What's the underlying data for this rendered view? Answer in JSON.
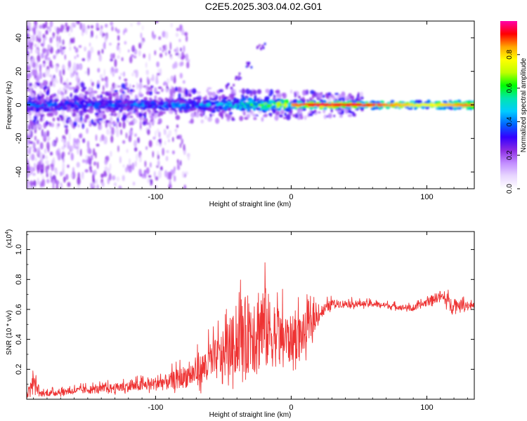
{
  "title": "C2E5.2025.303.04.02.G01",
  "chart_data": [
    {
      "type": "heatmap",
      "xlabel": "Height of straight line (km)",
      "ylabel": "Frequency (Hz)",
      "xlim": [
        -195,
        135
      ],
      "ylim": [
        -50,
        50
      ],
      "x_ticks": [
        -100,
        0,
        100
      ],
      "y_ticks": [
        -40,
        -20,
        0,
        20,
        40
      ],
      "colorbar": {
        "label": "Normalized spectral amplitude",
        "range": [
          0,
          1
        ],
        "ticks": [
          0.0,
          0.2,
          0.4,
          0.6,
          0.8
        ],
        "colormap": [
          "#ffffff",
          "#e8d6ff",
          "#c18cff",
          "#8a2be2",
          "#3300ff",
          "#0066ff",
          "#00ccff",
          "#00e5b0",
          "#00ff00",
          "#bfff00",
          "#ffff00",
          "#ffa500",
          "#ff0000",
          "#ff00aa"
        ]
      },
      "ridge": {
        "description_free": true,
        "x_start": -195,
        "x_end": 135,
        "center_frequency": 0,
        "amplitude_trend": [
          {
            "x": -195,
            "amp": 0.45
          },
          {
            "x": -100,
            "amp": 0.45
          },
          {
            "x": -40,
            "amp": 0.6
          },
          {
            "x": 0,
            "amp": 0.85
          },
          {
            "x": 20,
            "amp": 0.95
          },
          {
            "x": 60,
            "amp": 0.9
          },
          {
            "x": 100,
            "amp": 0.75
          },
          {
            "x": 135,
            "amp": 0.9
          }
        ]
      },
      "secondary_arc": [
        {
          "x": -45,
          "f": 12
        },
        {
          "x": -38,
          "f": 17
        },
        {
          "x": -30,
          "f": 24
        },
        {
          "x": -22,
          "f": 35
        }
      ]
    },
    {
      "type": "line",
      "xlabel": "Height of straight line (km)",
      "ylabel": "SNR (10 * v/v)",
      "multiplier": "(x10",
      "multiplier_exp": "4",
      "multiplier_close": ")",
      "xlim": [
        -195,
        135
      ],
      "ylim": [
        0,
        1.12
      ],
      "x_ticks": [
        -100,
        0,
        100
      ],
      "y_ticks": [
        0.2,
        0.4,
        0.6,
        0.8,
        1.0
      ],
      "color": "#ee3333",
      "envelope": [
        {
          "x": -195,
          "base": 0.02,
          "spread": 0.05
        },
        {
          "x": -190,
          "base": 0.1,
          "spread": 0.12
        },
        {
          "x": -185,
          "base": 0.03,
          "spread": 0.04
        },
        {
          "x": -160,
          "base": 0.05,
          "spread": 0.05
        },
        {
          "x": -140,
          "base": 0.06,
          "spread": 0.06
        },
        {
          "x": -110,
          "base": 0.08,
          "spread": 0.08
        },
        {
          "x": -90,
          "base": 0.1,
          "spread": 0.12
        },
        {
          "x": -70,
          "base": 0.15,
          "spread": 0.2
        },
        {
          "x": -50,
          "base": 0.25,
          "spread": 0.35
        },
        {
          "x": -35,
          "base": 0.35,
          "spread": 0.55
        },
        {
          "x": -22,
          "base": 0.4,
          "spread": 0.7
        },
        {
          "x": -10,
          "base": 0.35,
          "spread": 0.4
        },
        {
          "x": 0,
          "base": 0.35,
          "spread": 0.35
        },
        {
          "x": 10,
          "base": 0.4,
          "spread": 0.3
        },
        {
          "x": 20,
          "base": 0.55,
          "spread": 0.12
        },
        {
          "x": 30,
          "base": 0.63,
          "spread": 0.06
        },
        {
          "x": 60,
          "base": 0.63,
          "spread": 0.04
        },
        {
          "x": 90,
          "base": 0.6,
          "spread": 0.04
        },
        {
          "x": 110,
          "base": 0.68,
          "spread": 0.08
        },
        {
          "x": 118,
          "base": 0.62,
          "spread": 0.1
        },
        {
          "x": 135,
          "base": 0.62,
          "spread": 0.04
        }
      ]
    }
  ]
}
